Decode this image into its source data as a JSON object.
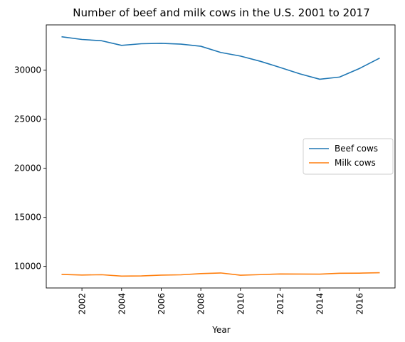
{
  "chart_data": {
    "type": "line",
    "title": "Number of beef and milk cows in the U.S. 2001 to 2017",
    "xlabel": "Year",
    "ylabel": "",
    "x": [
      2001,
      2002,
      2003,
      2004,
      2005,
      2006,
      2007,
      2008,
      2009,
      2010,
      2011,
      2012,
      2013,
      2014,
      2015,
      2016,
      2017
    ],
    "series": [
      {
        "name": "Beef cows",
        "color": "#1f77b4",
        "values": [
          33400,
          33135,
          33000,
          32530,
          32700,
          32740,
          32660,
          32440,
          31810,
          31440,
          30910,
          30280,
          29630,
          29080,
          29300,
          30170,
          31210
        ]
      },
      {
        "name": "Milk cows",
        "color": "#ff7f0e",
        "values": [
          9180,
          9120,
          9150,
          9010,
          9030,
          9110,
          9140,
          9260,
          9330,
          9100,
          9160,
          9230,
          9220,
          9210,
          9300,
          9310,
          9350
        ]
      }
    ],
    "xticks": [
      2002,
      2004,
      2006,
      2008,
      2010,
      2012,
      2014,
      2016
    ],
    "yticks": [
      10000,
      15000,
      20000,
      25000,
      30000
    ],
    "xlim": [
      2000.2,
      2017.8
    ],
    "ylim": [
      7800,
      34620
    ],
    "grid": false,
    "legend_position": "center-right",
    "xtick_rotation": "vertical"
  }
}
